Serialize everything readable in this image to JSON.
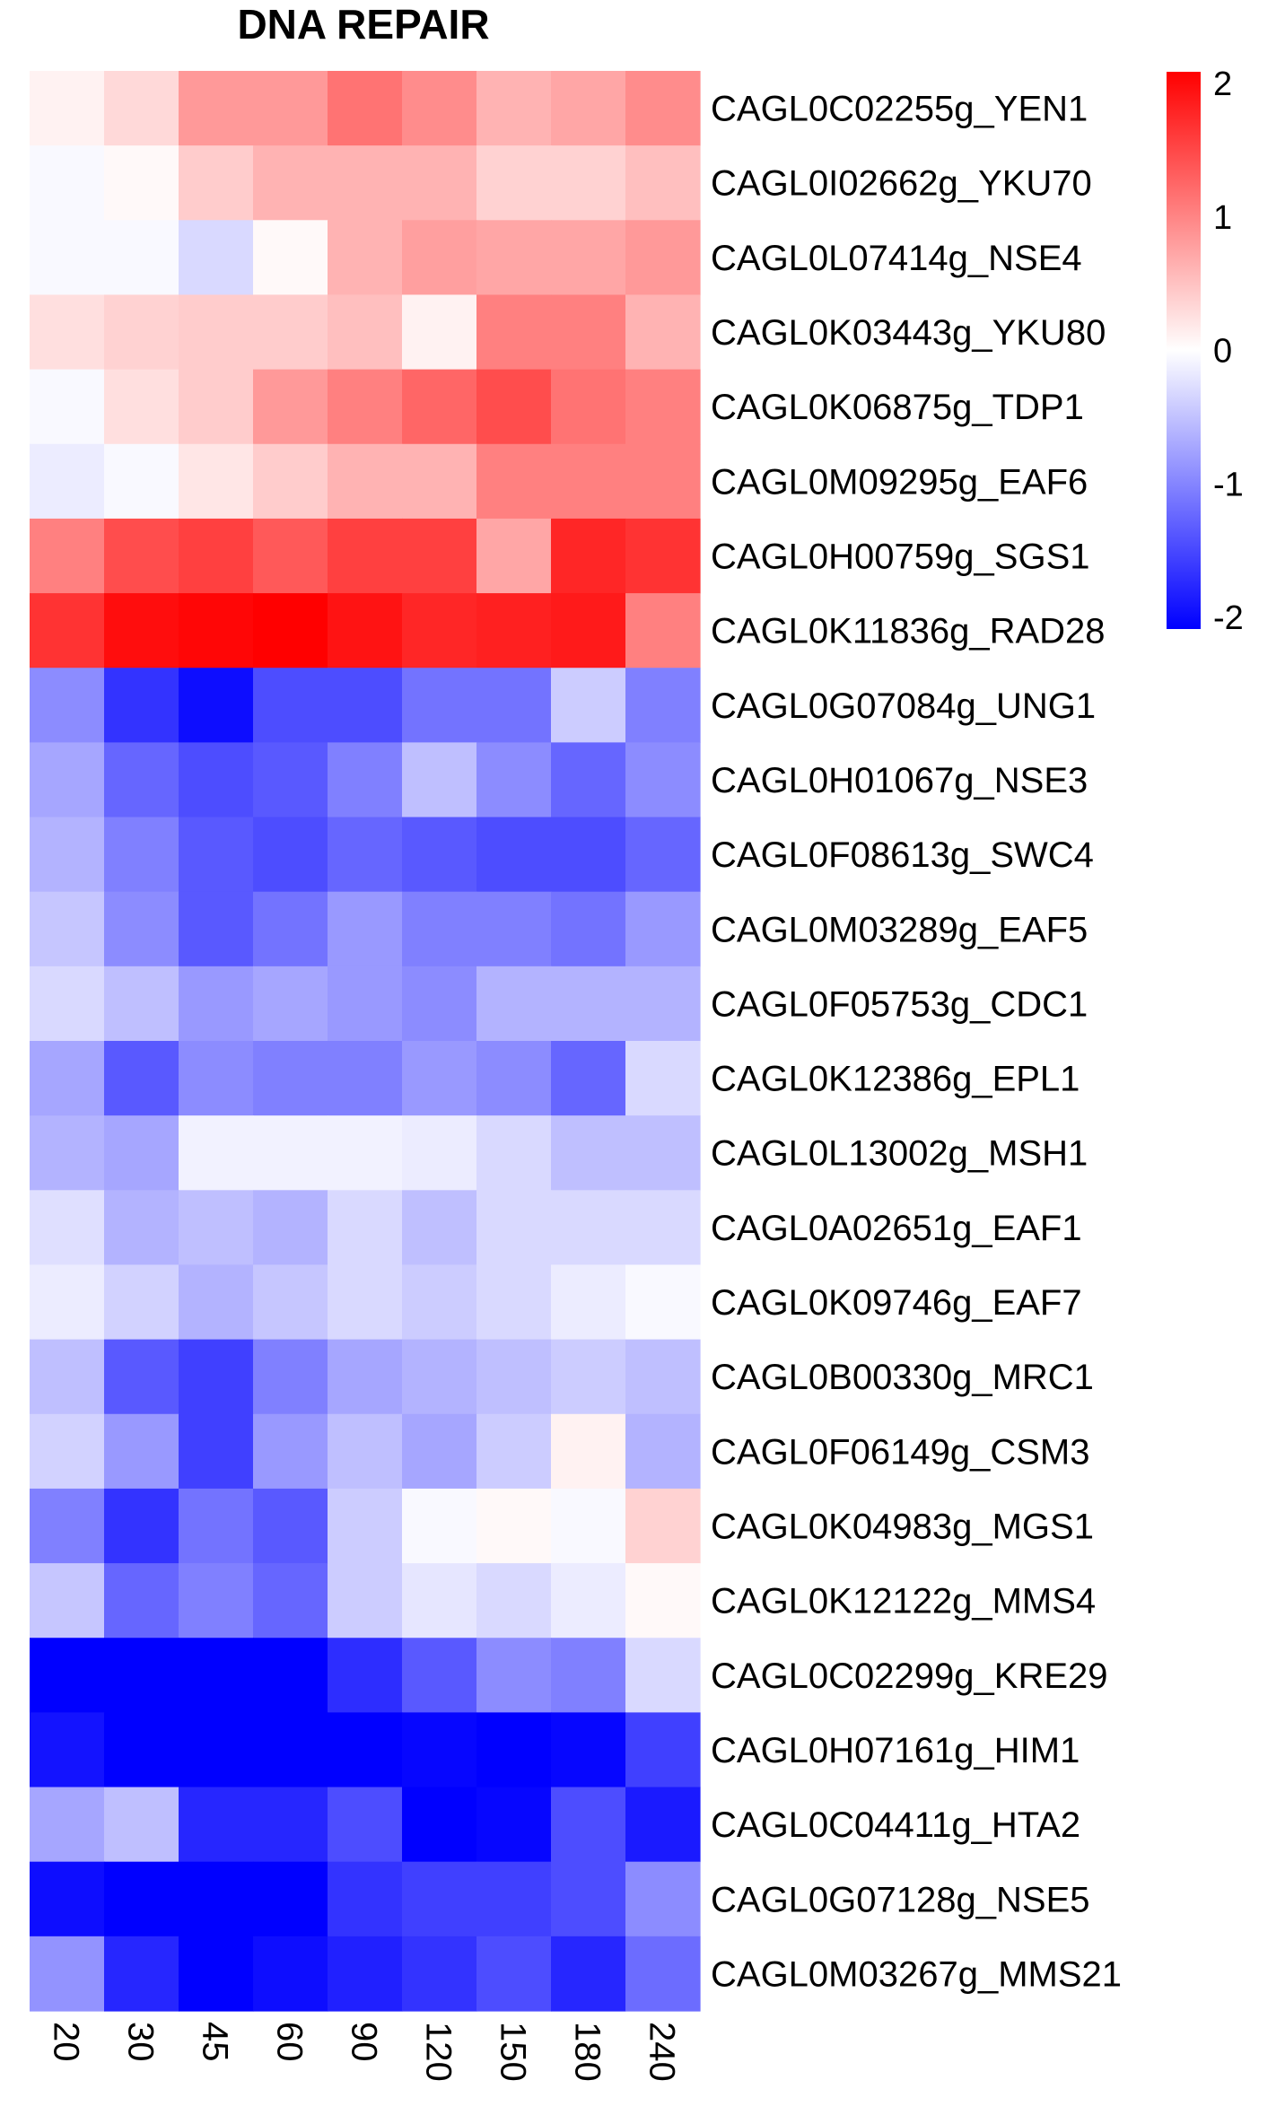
{
  "chart_data": {
    "type": "heatmap",
    "title": "DNA REPAIR",
    "x": [
      "20",
      "30",
      "45",
      "60",
      "90",
      "120",
      "150",
      "180",
      "240"
    ],
    "y": [
      "CAGL0C02255g_YEN1",
      "CAGL0I02662g_YKU70",
      "CAGL0L07414g_NSE4",
      "CAGL0K03443g_YKU80",
      "CAGL0K06875g_TDP1",
      "CAGL0M09295g_EAF6",
      "CAGL0H00759g_SGS1",
      "CAGL0K11836g_RAD28",
      "CAGL0G07084g_UNG1",
      "CAGL0H01067g_NSE3",
      "CAGL0F08613g_SWC4",
      "CAGL0M03289g_EAF5",
      "CAGL0F05753g_CDC1",
      "CAGL0K12386g_EPL1",
      "CAGL0L13002g_MSH1",
      "CAGL0A02651g_EAF1",
      "CAGL0K09746g_EAF7",
      "CAGL0B00330g_MRC1",
      "CAGL0F06149g_CSM3",
      "CAGL0K04983g_MGS1",
      "CAGL0K12122g_MMS4",
      "CAGL0C02299g_KRE29",
      "CAGL0H07161g_HIM1",
      "CAGL0C04411g_HTA2",
      "CAGL0G07128g_NSE5",
      "CAGL0M03267g_MMS21"
    ],
    "values": [
      [
        0.1,
        0.3,
        0.8,
        0.8,
        1.1,
        0.9,
        0.6,
        0.7,
        0.9
      ],
      [
        -0.05,
        0.05,
        0.4,
        0.6,
        0.6,
        0.6,
        0.35,
        0.35,
        0.5
      ],
      [
        -0.05,
        -0.05,
        -0.3,
        0.05,
        0.6,
        0.75,
        0.7,
        0.7,
        0.8
      ],
      [
        0.25,
        0.35,
        0.4,
        0.4,
        0.5,
        0.1,
        1.0,
        1.0,
        0.6
      ],
      [
        -0.05,
        0.25,
        0.4,
        0.8,
        1.0,
        1.2,
        1.4,
        1.1,
        1.0
      ],
      [
        -0.15,
        -0.05,
        0.2,
        0.4,
        0.6,
        0.6,
        1.0,
        1.0,
        1.0
      ],
      [
        1.0,
        1.4,
        1.5,
        1.3,
        1.5,
        1.5,
        0.7,
        1.7,
        1.6
      ],
      [
        1.6,
        1.9,
        1.95,
        2.0,
        1.85,
        1.7,
        1.75,
        1.8,
        1.0
      ],
      [
        -0.9,
        -1.6,
        -1.9,
        -1.4,
        -1.4,
        -1.1,
        -1.1,
        -0.4,
        -1.0
      ],
      [
        -0.7,
        -1.2,
        -1.4,
        -1.3,
        -1.0,
        -0.5,
        -0.9,
        -1.2,
        -0.9
      ],
      [
        -0.6,
        -1.0,
        -1.3,
        -1.4,
        -1.2,
        -1.3,
        -1.4,
        -1.4,
        -1.2
      ],
      [
        -0.45,
        -0.9,
        -1.3,
        -1.1,
        -0.8,
        -1.0,
        -1.0,
        -1.1,
        -0.8
      ],
      [
        -0.3,
        -0.5,
        -0.8,
        -0.7,
        -0.8,
        -0.9,
        -0.6,
        -0.6,
        -0.6
      ],
      [
        -0.7,
        -1.3,
        -0.9,
        -1.0,
        -1.0,
        -0.8,
        -0.9,
        -1.2,
        -0.3
      ],
      [
        -0.6,
        -0.7,
        -0.1,
        -0.1,
        -0.1,
        -0.15,
        -0.3,
        -0.5,
        -0.5
      ],
      [
        -0.25,
        -0.6,
        -0.5,
        -0.6,
        -0.3,
        -0.5,
        -0.3,
        -0.3,
        -0.3
      ],
      [
        -0.15,
        -0.35,
        -0.6,
        -0.45,
        -0.3,
        -0.4,
        -0.3,
        -0.15,
        -0.05
      ],
      [
        -0.5,
        -1.3,
        -1.5,
        -1.0,
        -0.7,
        -0.6,
        -0.5,
        -0.4,
        -0.5
      ],
      [
        -0.35,
        -0.8,
        -1.5,
        -0.8,
        -0.5,
        -0.7,
        -0.4,
        0.1,
        -0.6
      ],
      [
        -1.0,
        -1.6,
        -1.1,
        -1.3,
        -0.4,
        -0.05,
        0.05,
        -0.05,
        0.35
      ],
      [
        -0.45,
        -1.2,
        -1.0,
        -1.2,
        -0.4,
        -0.2,
        -0.3,
        -0.15,
        0.05
      ],
      [
        -2.0,
        -2.0,
        -2.0,
        -2.0,
        -1.65,
        -1.3,
        -0.9,
        -1.0,
        -0.3
      ],
      [
        -1.85,
        -2.0,
        -2.0,
        -2.0,
        -2.0,
        -1.95,
        -2.0,
        -1.95,
        -1.5
      ],
      [
        -0.7,
        -0.5,
        -1.7,
        -1.7,
        -1.4,
        -2.0,
        -1.95,
        -1.4,
        -1.8
      ],
      [
        -1.9,
        -2.0,
        -2.0,
        -2.0,
        -1.6,
        -1.5,
        -1.5,
        -1.4,
        -0.9
      ],
      [
        -0.85,
        -1.7,
        -2.0,
        -1.9,
        -1.75,
        -1.6,
        -1.4,
        -1.7,
        -1.15
      ]
    ],
    "legend": {
      "ticks": [
        "2",
        "1",
        "0",
        "-1",
        "-2"
      ],
      "tick_values": [
        2,
        1,
        0,
        -1,
        -2
      ],
      "min": -2,
      "max": 2,
      "low_color": "#0000FF",
      "mid_color": "#FFFFFF",
      "high_color": "#FF0000"
    }
  }
}
